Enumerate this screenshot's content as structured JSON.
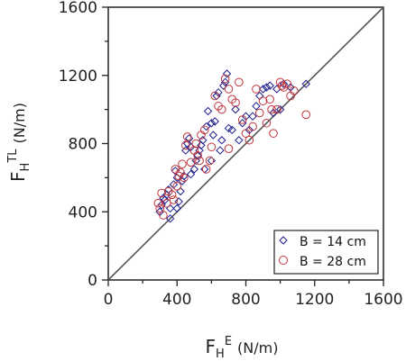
{
  "chart_data": {
    "type": "scatter",
    "title": "",
    "xlabel": {
      "main": "F",
      "sub": "H",
      "sup": "E",
      "unit": "(N/m)"
    },
    "ylabel": {
      "main": "F",
      "sub": "H",
      "sup": "TL",
      "unit": "(N/m)"
    },
    "xlim": [
      0,
      1600
    ],
    "ylim": [
      0,
      1600
    ],
    "xticks": [
      "0",
      "400",
      "800",
      "1200",
      "1600"
    ],
    "yticks": [
      "0",
      "400",
      "800",
      "1200",
      "1600"
    ],
    "reference_line": "1:1",
    "legend_position": "bottom-right",
    "series": [
      {
        "name": "B = 14 cm",
        "marker": "diamond",
        "color": "#1f1f8f",
        "points": [
          [
            300,
            400
          ],
          [
            310,
            440
          ],
          [
            320,
            480
          ],
          [
            330,
            470
          ],
          [
            340,
            500
          ],
          [
            350,
            530
          ],
          [
            360,
            360
          ],
          [
            360,
            420
          ],
          [
            380,
            560
          ],
          [
            390,
            640
          ],
          [
            400,
            600
          ],
          [
            400,
            420
          ],
          [
            410,
            460
          ],
          [
            420,
            520
          ],
          [
            430,
            580
          ],
          [
            440,
            610
          ],
          [
            450,
            760
          ],
          [
            460,
            800
          ],
          [
            470,
            830
          ],
          [
            480,
            780
          ],
          [
            480,
            620
          ],
          [
            500,
            650
          ],
          [
            510,
            700
          ],
          [
            520,
            730
          ],
          [
            530,
            760
          ],
          [
            540,
            790
          ],
          [
            550,
            820
          ],
          [
            560,
            650
          ],
          [
            570,
            900
          ],
          [
            580,
            990
          ],
          [
            600,
            920
          ],
          [
            600,
            700
          ],
          [
            610,
            850
          ],
          [
            620,
            930
          ],
          [
            630,
            1080
          ],
          [
            640,
            1100
          ],
          [
            650,
            760
          ],
          [
            660,
            820
          ],
          [
            670,
            1140
          ],
          [
            680,
            1160
          ],
          [
            690,
            1210
          ],
          [
            700,
            890
          ],
          [
            720,
            880
          ],
          [
            740,
            1000
          ],
          [
            760,
            820
          ],
          [
            780,
            920
          ],
          [
            800,
            960
          ],
          [
            820,
            880
          ],
          [
            840,
            960
          ],
          [
            860,
            1020
          ],
          [
            880,
            1080
          ],
          [
            900,
            1120
          ],
          [
            920,
            1130
          ],
          [
            940,
            1140
          ],
          [
            960,
            980
          ],
          [
            980,
            1120
          ],
          [
            1000,
            1000
          ],
          [
            1020,
            1150
          ],
          [
            1060,
            1130
          ],
          [
            1150,
            1150
          ]
        ]
      },
      {
        "name": "B = 28 cm",
        "marker": "circle",
        "color": "#c0343c",
        "points": [
          [
            290,
            450
          ],
          [
            300,
            420
          ],
          [
            310,
            510
          ],
          [
            320,
            380
          ],
          [
            340,
            450
          ],
          [
            350,
            520
          ],
          [
            370,
            500
          ],
          [
            380,
            470
          ],
          [
            390,
            650
          ],
          [
            400,
            550
          ],
          [
            410,
            610
          ],
          [
            420,
            630
          ],
          [
            430,
            680
          ],
          [
            440,
            600
          ],
          [
            450,
            790
          ],
          [
            460,
            840
          ],
          [
            480,
            690
          ],
          [
            500,
            760
          ],
          [
            510,
            800
          ],
          [
            520,
            730
          ],
          [
            530,
            700
          ],
          [
            540,
            850
          ],
          [
            560,
            880
          ],
          [
            570,
            650
          ],
          [
            590,
            700
          ],
          [
            600,
            780
          ],
          [
            620,
            1080
          ],
          [
            640,
            1020
          ],
          [
            660,
            1000
          ],
          [
            680,
            1180
          ],
          [
            700,
            1120
          ],
          [
            700,
            770
          ],
          [
            720,
            1060
          ],
          [
            740,
            1040
          ],
          [
            760,
            1160
          ],
          [
            780,
            940
          ],
          [
            800,
            860
          ],
          [
            820,
            820
          ],
          [
            840,
            900
          ],
          [
            860,
            1120
          ],
          [
            880,
            980
          ],
          [
            900,
            1050
          ],
          [
            920,
            920
          ],
          [
            940,
            1060
          ],
          [
            960,
            860
          ],
          [
            980,
            1000
          ],
          [
            1000,
            1160
          ],
          [
            1020,
            1130
          ],
          [
            1040,
            1150
          ],
          [
            1060,
            1080
          ],
          [
            1080,
            1110
          ],
          [
            1150,
            970
          ],
          [
            1010,
            1140
          ],
          [
            950,
            1000
          ]
        ]
      }
    ]
  }
}
